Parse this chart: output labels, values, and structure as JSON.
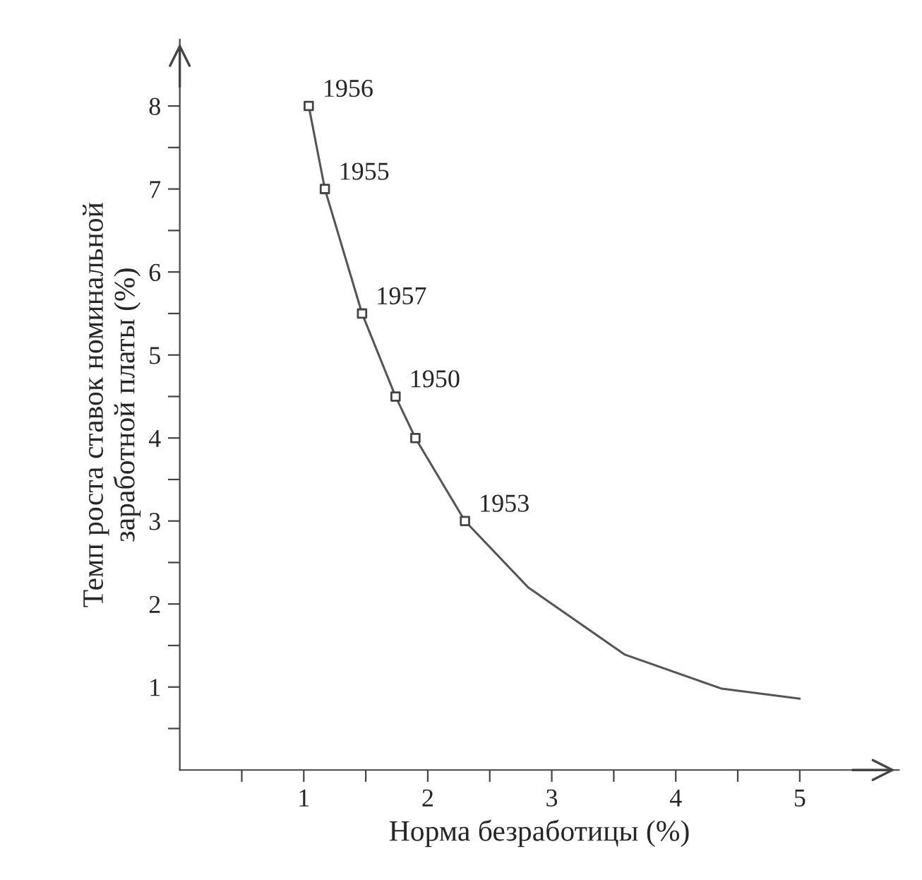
{
  "chart_data": {
    "type": "line",
    "xlabel": "Норма безработицы (%)",
    "ylabel": "Темп роста ставок номинальной\nзаработной платы (%)",
    "series": [
      {
        "color": "#555555",
        "x": [
          1.04,
          1.17,
          1.47,
          1.74,
          1.9,
          2.3,
          2.81,
          3.59,
          4.37,
          5.0
        ],
        "values": [
          8,
          7,
          5.5,
          4.5,
          4,
          3,
          2.2,
          1.39,
          0.98,
          0.86
        ],
        "marker": "none",
        "line_style": "solid"
      },
      {
        "type": "scatter",
        "color": "#444444",
        "x": [
          1.04,
          1.17,
          1.47,
          1.74,
          1.9,
          2.3
        ],
        "values": [
          8,
          7,
          5.5,
          4.5,
          4,
          3
        ],
        "marker": "square"
      }
    ],
    "annotations": [
      {
        "text": "1956",
        "x": 1.04,
        "y": 8
      },
      {
        "text": "1955",
        "x": 1.17,
        "y": 7
      },
      {
        "text": "1957",
        "x": 1.47,
        "y": 5.5
      },
      {
        "text": "1950",
        "x": 1.74,
        "y": 4.5
      },
      {
        "text": "1953",
        "x": 2.3,
        "y": 3
      }
    ],
    "xlim": [
      0,
      5.8
    ],
    "ylim": [
      0,
      8.8
    ],
    "xticks": [
      {
        "value": 0.5,
        "label": null
      },
      1,
      {
        "value": 1.5,
        "label": null
      },
      2,
      {
        "value": 2.5,
        "label": null
      },
      3,
      {
        "value": 3.5,
        "label": null
      },
      4,
      {
        "value": 4.5,
        "label": null
      },
      5
    ],
    "yticks": [
      {
        "value": 0.5,
        "label": null
      },
      1,
      {
        "value": 1.5,
        "label": null
      },
      2,
      {
        "value": 2.5,
        "label": null
      },
      3,
      {
        "value": 3.5,
        "label": null
      },
      4,
      {
        "value": 4.5,
        "label": null
      },
      5,
      {
        "value": 5.5,
        "label": null
      },
      6,
      {
        "value": 6.5,
        "label": null
      },
      7,
      {
        "value": 7.5,
        "label": null
      },
      8
    ],
    "grid": false,
    "legend": false
  }
}
